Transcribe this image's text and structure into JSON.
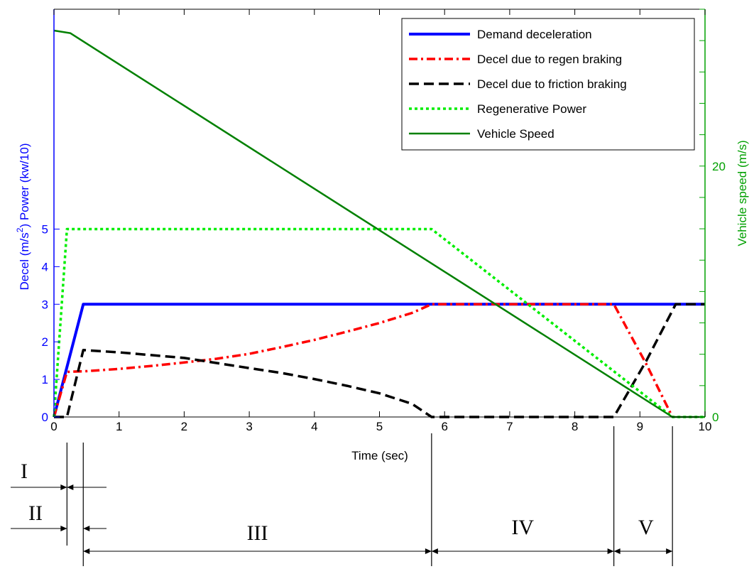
{
  "chart_data": {
    "type": "line",
    "xlabel": "Time (sec)",
    "ylabel_left_1": "Decel (m/s",
    "ylabel_left_sup": "2",
    "ylabel_left_2": ")  Power (kw/10)",
    "ylabel_right": "Vehicle speed (m/s)",
    "xlim": [
      0,
      10
    ],
    "ylim_left": [
      0,
      10.85
    ],
    "ylim_right": [
      0,
      32.5
    ],
    "x_ticks": [
      0,
      1,
      2,
      3,
      4,
      5,
      6,
      7,
      8,
      9,
      10
    ],
    "y_ticks_left": [
      0,
      1,
      2,
      3,
      4,
      5
    ],
    "y_ticks_right": [
      0,
      20
    ],
    "grid": false,
    "legend_position": "top-right",
    "colors": {
      "left_axis": "#0000ff",
      "right_axis": "#00a000"
    },
    "series": [
      {
        "name": "Demand deceleration",
        "axis": "left",
        "color": "#0000ff",
        "style": "solid",
        "points": [
          [
            0,
            0
          ],
          [
            0.45,
            3
          ],
          [
            10,
            3
          ]
        ]
      },
      {
        "name": "Decel due to regen braking",
        "axis": "left",
        "color": "#ff0000",
        "style": "dashdot",
        "points": [
          [
            0,
            0
          ],
          [
            0.2,
            1.2
          ],
          [
            0.5,
            1.22
          ],
          [
            1,
            1.28
          ],
          [
            1.5,
            1.36
          ],
          [
            2,
            1.45
          ],
          [
            2.5,
            1.55
          ],
          [
            3,
            1.68
          ],
          [
            3.5,
            1.86
          ],
          [
            4,
            2.05
          ],
          [
            4.5,
            2.27
          ],
          [
            5,
            2.5
          ],
          [
            5.5,
            2.77
          ],
          [
            5.8,
            3.0
          ],
          [
            8.6,
            3.0
          ],
          [
            9.1,
            1.4
          ],
          [
            9.5,
            0
          ]
        ]
      },
      {
        "name": "Decel due to friction braking",
        "axis": "left",
        "color": "#000000",
        "style": "dashed",
        "points": [
          [
            0,
            0
          ],
          [
            0.2,
            0
          ],
          [
            0.45,
            1.78
          ],
          [
            1,
            1.72
          ],
          [
            2,
            1.57
          ],
          [
            3,
            1.3
          ],
          [
            3.5,
            1.17
          ],
          [
            4,
            1.01
          ],
          [
            4.5,
            0.83
          ],
          [
            5,
            0.63
          ],
          [
            5.5,
            0.35
          ],
          [
            5.8,
            0
          ],
          [
            8.6,
            0
          ],
          [
            9.1,
            1.5
          ],
          [
            9.55,
            3.0
          ],
          [
            10,
            3.0
          ]
        ]
      },
      {
        "name": "Regenerative Power",
        "axis": "left",
        "color": "#00ee00",
        "style": "dotted",
        "points": [
          [
            0,
            0
          ],
          [
            0.2,
            5
          ],
          [
            5.8,
            5
          ],
          [
            9.5,
            0
          ],
          [
            10,
            0
          ]
        ]
      },
      {
        "name": "Vehicle Speed",
        "axis": "right",
        "color": "#008000",
        "style": "solid",
        "points": [
          [
            0,
            30.8
          ],
          [
            0.25,
            30.6
          ],
          [
            9.5,
            0
          ],
          [
            10,
            0
          ]
        ]
      }
    ],
    "phase_labels": [
      "I",
      "II",
      "III",
      "IV",
      "V"
    ],
    "phase_boundaries": [
      0.2,
      0.45,
      5.8,
      8.6,
      9.5
    ]
  }
}
